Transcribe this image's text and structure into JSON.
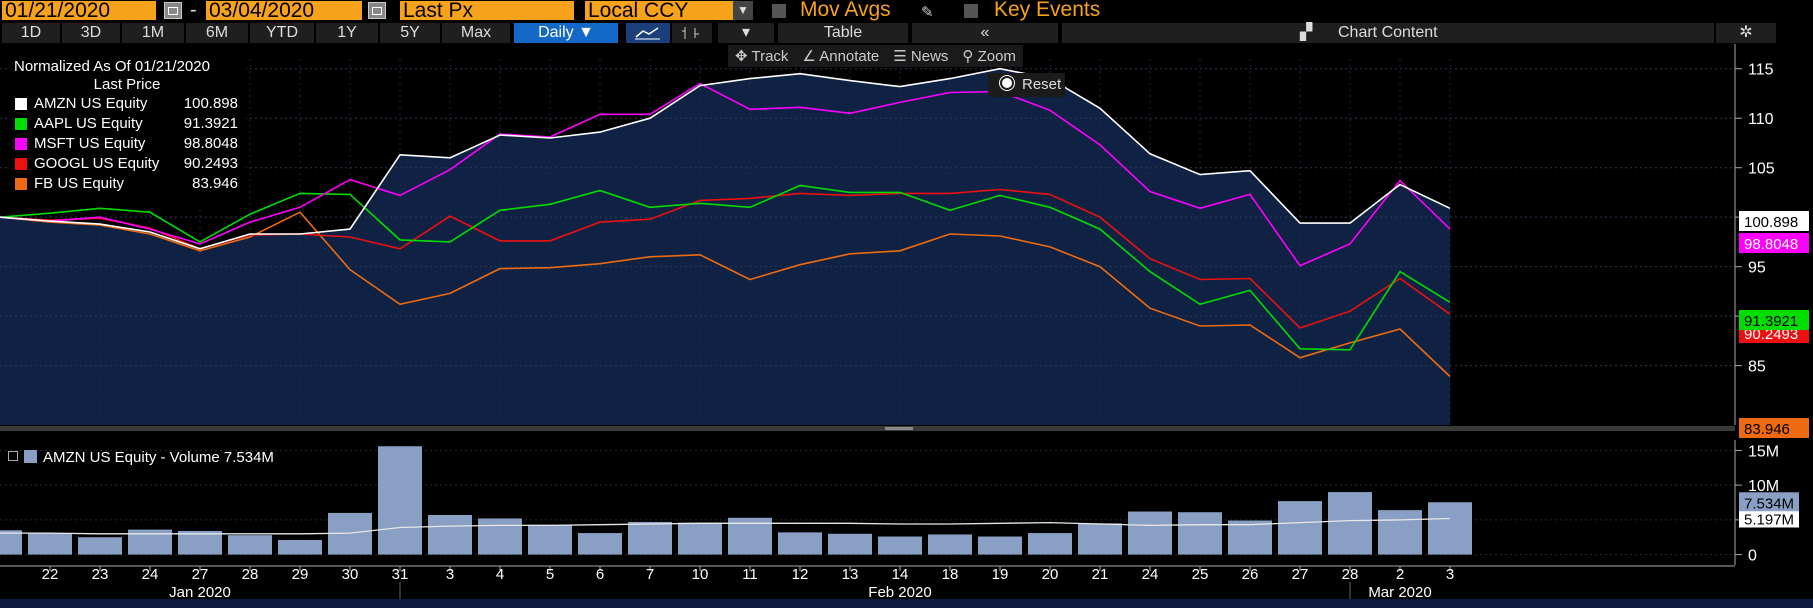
{
  "toolbar": {
    "start_date": "01/21/2020",
    "dash": "-",
    "end_date": "03/04/2020",
    "field": "Last Px",
    "currency": "Local CCY",
    "mov_avgs": "Mov Avgs",
    "key_events": "Key Events"
  },
  "periods": [
    "1D",
    "3D",
    "1M",
    "6M",
    "YTD",
    "1Y",
    "5Y",
    "Max"
  ],
  "frequency": "Daily ▼",
  "table_label": "Table",
  "chart_content_label": "Chart Content",
  "context_menu": {
    "track": "Track",
    "annotate": "Annotate",
    "news": "News",
    "zoom": "Zoom",
    "reset": "Reset"
  },
  "legend": {
    "title": "Normalized As Of 01/21/2020",
    "subtitle": "Last Price"
  },
  "volume_legend": "AMZN US Equity - Volume 7.534M",
  "colors": {
    "AMZN": "#ffffff",
    "AAPL": "#00dd00",
    "MSFT": "#ff00ff",
    "GOOGL": "#ee1010",
    "FB": "#ee6a10",
    "volume_bar": "#8a9fc4",
    "accent": "#f7a21b",
    "area": "#0f2244"
  },
  "chart_data": [
    {
      "type": "line",
      "title": "",
      "ylim": [
        79,
        117.5
      ],
      "yticks": [
        85,
        90,
        95,
        100,
        105,
        110,
        115
      ],
      "x_labels": [
        "22",
        "23",
        "24",
        "27",
        "28",
        "29",
        "30",
        "31",
        "3",
        "4",
        "5",
        "6",
        "7",
        "10",
        "11",
        "12",
        "13",
        "14",
        "18",
        "19",
        "20",
        "21",
        "24",
        "25",
        "26",
        "27",
        "28",
        "2",
        "3"
      ],
      "month_labels": [
        {
          "label": "Jan 2020",
          "at": "27"
        },
        {
          "label": "Feb 2020",
          "at": "14"
        },
        {
          "label": "Mar 2020",
          "at": "2"
        }
      ],
      "series": [
        {
          "name": "AMZN US Equity",
          "key": "AMZN",
          "last": "100.898",
          "badge_bg": "#ffffff",
          "badge_fg": "#000000",
          "values": [
            100,
            99.6,
            99.3,
            98.5,
            96.8,
            98.3,
            98.3,
            98.8,
            106.3,
            106,
            108.3,
            108,
            108.6,
            110,
            113.3,
            114,
            114.5,
            113.8,
            113.2,
            114,
            115,
            114,
            111,
            106.4,
            104.3,
            104.7,
            99.4,
            99.4,
            103.3,
            100.9
          ]
        },
        {
          "name": "AAPL US Equity",
          "key": "AAPL",
          "last": "91.3921",
          "badge_bg": "#00dd00",
          "badge_fg": "#000000",
          "values": [
            100,
            100.4,
            100.9,
            100.5,
            97.5,
            100.3,
            102.4,
            102.3,
            97.7,
            97.5,
            100.7,
            101.3,
            102.7,
            101,
            101.4,
            101,
            103.2,
            102.5,
            102.5,
            100.7,
            102.2,
            101,
            98.8,
            94.5,
            91.2,
            92.6,
            86.7,
            86.6,
            94.5,
            91.4
          ]
        },
        {
          "name": "MSFT US Equity",
          "key": "MSFT",
          "last": "98.8048",
          "badge_bg": "#ff00ff",
          "badge_fg": "#ffffff",
          "values": [
            100,
            99.6,
            100,
            98.8,
            97.3,
            99.5,
            101,
            103.8,
            102.2,
            104.8,
            108.4,
            108.1,
            110.4,
            110.4,
            113.5,
            110.9,
            111.1,
            110.5,
            111.6,
            112.6,
            112.7,
            110.8,
            107.3,
            102.6,
            100.9,
            102.3,
            95.1,
            97.3,
            103.7,
            98.8
          ]
        },
        {
          "name": "GOOGL US Equity",
          "key": "GOOGL",
          "last": "90.2493",
          "badge_bg": "#ee1010",
          "badge_fg": "#ffffff",
          "values": [
            100,
            99.7,
            99.9,
            98.9,
            96.8,
            98.2,
            98.3,
            98,
            96.8,
            100.1,
            97.6,
            97.6,
            99.5,
            99.8,
            101.7,
            101.9,
            102.4,
            102.2,
            102.4,
            102.4,
            102.8,
            102.3,
            100,
            95.8,
            93.7,
            93.8,
            88.8,
            90.5,
            93.8,
            90.2
          ]
        },
        {
          "name": "FB US Equity",
          "key": "FB",
          "last": "83.946",
          "badge_bg": "#ee6a10",
          "badge_fg": "#000000",
          "values": [
            100,
            99.5,
            99.2,
            98.3,
            96.6,
            98,
            100.5,
            94.7,
            91.2,
            92.3,
            94.8,
            94.9,
            95.3,
            96,
            96.2,
            93.7,
            95.2,
            96.3,
            96.6,
            98.3,
            98.1,
            97,
            95,
            90.8,
            89,
            89.1,
            85.8,
            87.3,
            88.7,
            83.9
          ]
        }
      ]
    },
    {
      "type": "bar",
      "title": "",
      "ylim": [
        -1.5,
        16.5
      ],
      "yticks": [
        {
          "v": 15,
          "label": "15M"
        },
        {
          "v": 10,
          "label": "10M"
        },
        {
          "v": 5,
          "label": "5M"
        },
        {
          "v": 0,
          "label": "0"
        }
      ],
      "unit": "M",
      "values": [
        3.5,
        3.1,
        2.5,
        3.6,
        3.4,
        2.8,
        2.1,
        6.0,
        15.6,
        5.7,
        5.2,
        4.3,
        3.1,
        4.7,
        4.6,
        5.3,
        3.2,
        3.0,
        2.6,
        2.9,
        2.6,
        3.1,
        4.5,
        6.2,
        6.1,
        4.9,
        7.7,
        9.0,
        6.4,
        7.534
      ],
      "moving_average": [
        3.1,
        3.1,
        3.0,
        3.0,
        3.0,
        3.0,
        3.0,
        3.1,
        3.9,
        4.1,
        4.2,
        4.2,
        4.3,
        4.4,
        4.5,
        4.5,
        4.5,
        4.5,
        4.4,
        4.4,
        4.5,
        4.6,
        4.4,
        4.2,
        4.3,
        4.3,
        4.6,
        4.9,
        5.0,
        5.197
      ],
      "last_label": "7.534M",
      "ma_label": "5.197M"
    }
  ]
}
